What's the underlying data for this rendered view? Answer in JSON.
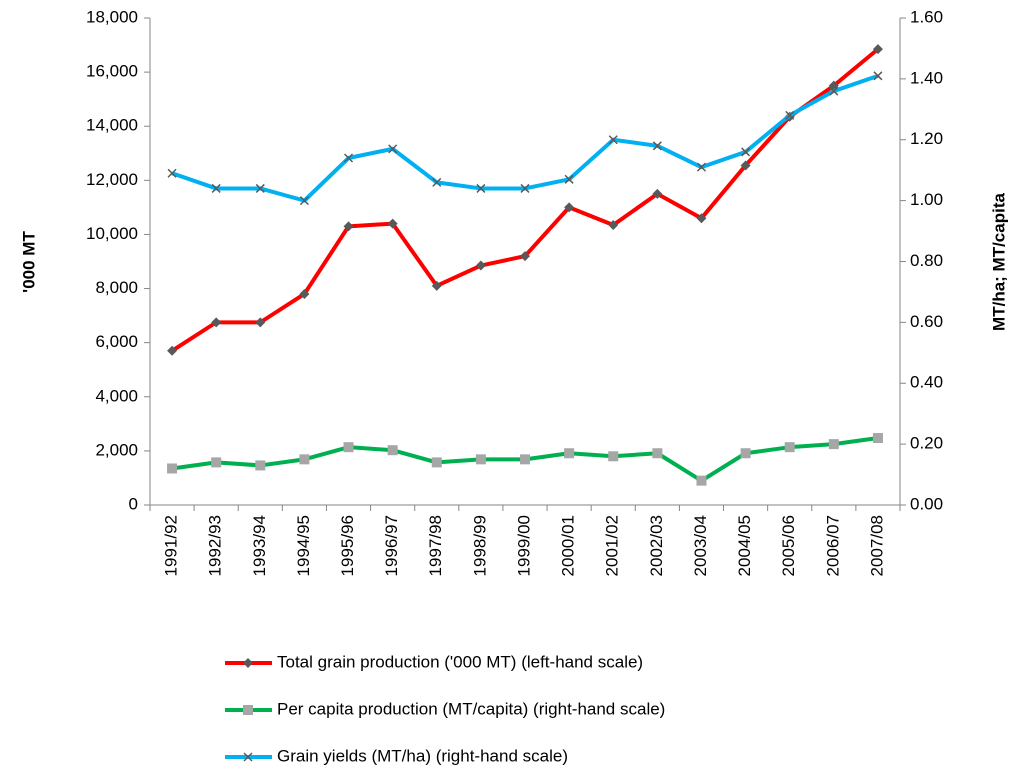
{
  "chart_data": {
    "type": "line",
    "ylabel": "'000 MT",
    "y2label": "MT/ha; MT/capita",
    "categories": [
      "1991/92",
      "1992/93",
      "1993/94",
      "1994/95",
      "1995/96",
      "1996/97",
      "1997/98",
      "1998/99",
      "1999/00",
      "2000/01",
      "2001/02",
      "2002/03",
      "2003/04",
      "2004/05",
      "2005/06",
      "2006/07",
      "2007/08"
    ],
    "ylim": [
      0,
      18000
    ],
    "yticks": [
      0,
      {
        "value": 2000,
        "label": "2,000"
      },
      {
        "value": 4000,
        "label": "4,000"
      },
      {
        "value": 6000,
        "label": "6,000"
      },
      {
        "value": 8000,
        "label": "8,000"
      },
      {
        "value": 10000,
        "label": "10,000"
      },
      {
        "value": 12000,
        "label": "12,000"
      },
      {
        "value": 14000,
        "label": "14,000"
      },
      {
        "value": 16000,
        "label": "16,000"
      },
      {
        "value": 18000,
        "label": "18,000"
      }
    ],
    "y2lim": [
      0,
      1.6
    ],
    "y2ticks": [
      {
        "value": 0,
        "label": "0.00"
      },
      {
        "value": 0.2,
        "label": "0.20"
      },
      {
        "value": 0.4,
        "label": "0.40"
      },
      {
        "value": 0.6,
        "label": "0.60"
      },
      {
        "value": 0.8,
        "label": "0.80"
      },
      {
        "value": 1.0,
        "label": "1.00"
      },
      {
        "value": 1.2,
        "label": "1.20"
      },
      {
        "value": 1.4,
        "label": "1.40"
      },
      {
        "value": 1.6,
        "label": "1.60"
      }
    ],
    "grid": false,
    "series": [
      {
        "name": "Total grain production ('000 MT) (left-hand scale)",
        "color": "#ff0000",
        "marker": "diamond",
        "marker_color": "#595959",
        "values": [
          5700,
          6750,
          6750,
          7800,
          10300,
          10400,
          8100,
          8850,
          9200,
          11000,
          10350,
          11500,
          10600,
          12550,
          14350,
          15500,
          16850
        ]
      },
      {
        "name": "Per capita production (MT/capita) (right-hand scale)",
        "color": "#00b050",
        "marker": "square",
        "marker_color": "#a6a6a6",
        "axis": "y2",
        "values": [
          0.12,
          0.14,
          0.13,
          0.15,
          0.19,
          0.18,
          0.14,
          0.15,
          0.15,
          0.17,
          0.16,
          0.17,
          0.08,
          0.17,
          0.19,
          0.2,
          0.22
        ]
      },
      {
        "name": "Grain yields (MT/ha) (right-hand scale)",
        "color": "#00b0f0",
        "marker": "x",
        "marker_color": "#595959",
        "axis": "y2",
        "values": [
          1.09,
          1.04,
          1.04,
          1.0,
          1.14,
          1.17,
          1.06,
          1.04,
          1.04,
          1.07,
          1.2,
          1.18,
          1.11,
          1.16,
          1.28,
          1.36,
          1.41
        ]
      }
    ]
  }
}
